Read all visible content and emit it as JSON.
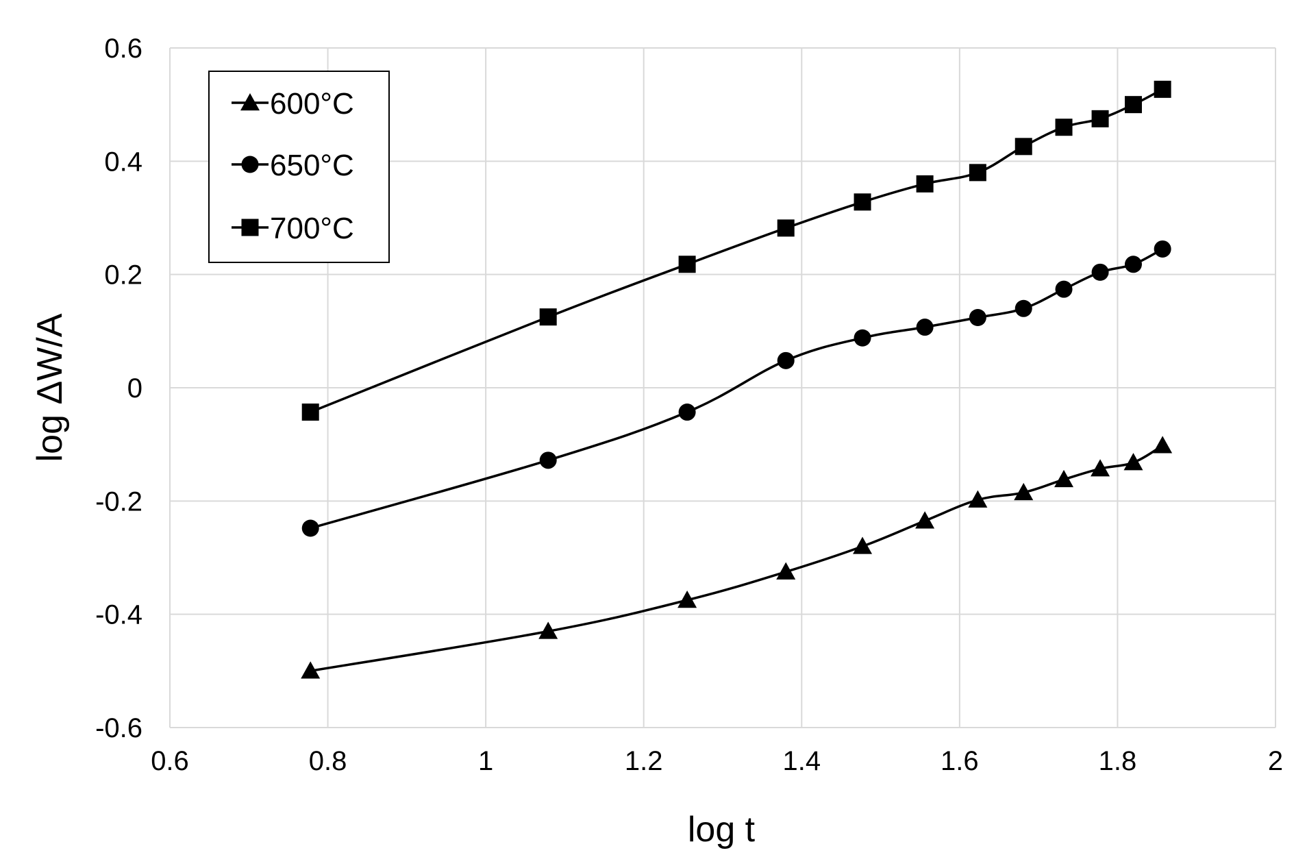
{
  "chart_data": {
    "type": "line",
    "title": "",
    "xlabel": "log t",
    "ylabel": "log ΔW/A",
    "xlim": [
      0.6,
      2
    ],
    "ylim": [
      -0.6,
      0.6
    ],
    "x_ticks": [
      0.6,
      0.8,
      1,
      1.2,
      1.4,
      1.6,
      1.8,
      2
    ],
    "y_ticks": [
      -0.6,
      -0.4,
      -0.2,
      0,
      0.2,
      0.4,
      0.6
    ],
    "x_tick_labels": [
      "0.6",
      "0.8",
      "1",
      "1.2",
      "1.4",
      "1.6",
      "1.8",
      "2"
    ],
    "y_tick_labels": [
      "-0.6",
      "-0.4",
      "-0.2",
      "0",
      "0.2",
      "0.4",
      "0.6"
    ],
    "grid": true,
    "legend_position": "top-left",
    "x": [
      0.778,
      1.079,
      1.255,
      1.38,
      1.477,
      1.556,
      1.623,
      1.681,
      1.732,
      1.778,
      1.82,
      1.857
    ],
    "series": [
      {
        "name": "600°C",
        "marker": "triangle",
        "values": [
          -0.5,
          -0.43,
          -0.375,
          -0.325,
          -0.28,
          -0.235,
          -0.198,
          -0.185,
          -0.162,
          -0.143,
          -0.132,
          -0.102
        ]
      },
      {
        "name": "650°C",
        "marker": "circle",
        "values": [
          -0.248,
          -0.128,
          -0.043,
          0.048,
          0.088,
          0.107,
          0.124,
          0.14,
          0.174,
          0.204,
          0.218,
          0.245
        ]
      },
      {
        "name": "700°C",
        "marker": "square",
        "values": [
          -0.043,
          0.125,
          0.218,
          0.282,
          0.328,
          0.36,
          0.38,
          0.426,
          0.46,
          0.475,
          0.5,
          0.527
        ]
      }
    ]
  }
}
